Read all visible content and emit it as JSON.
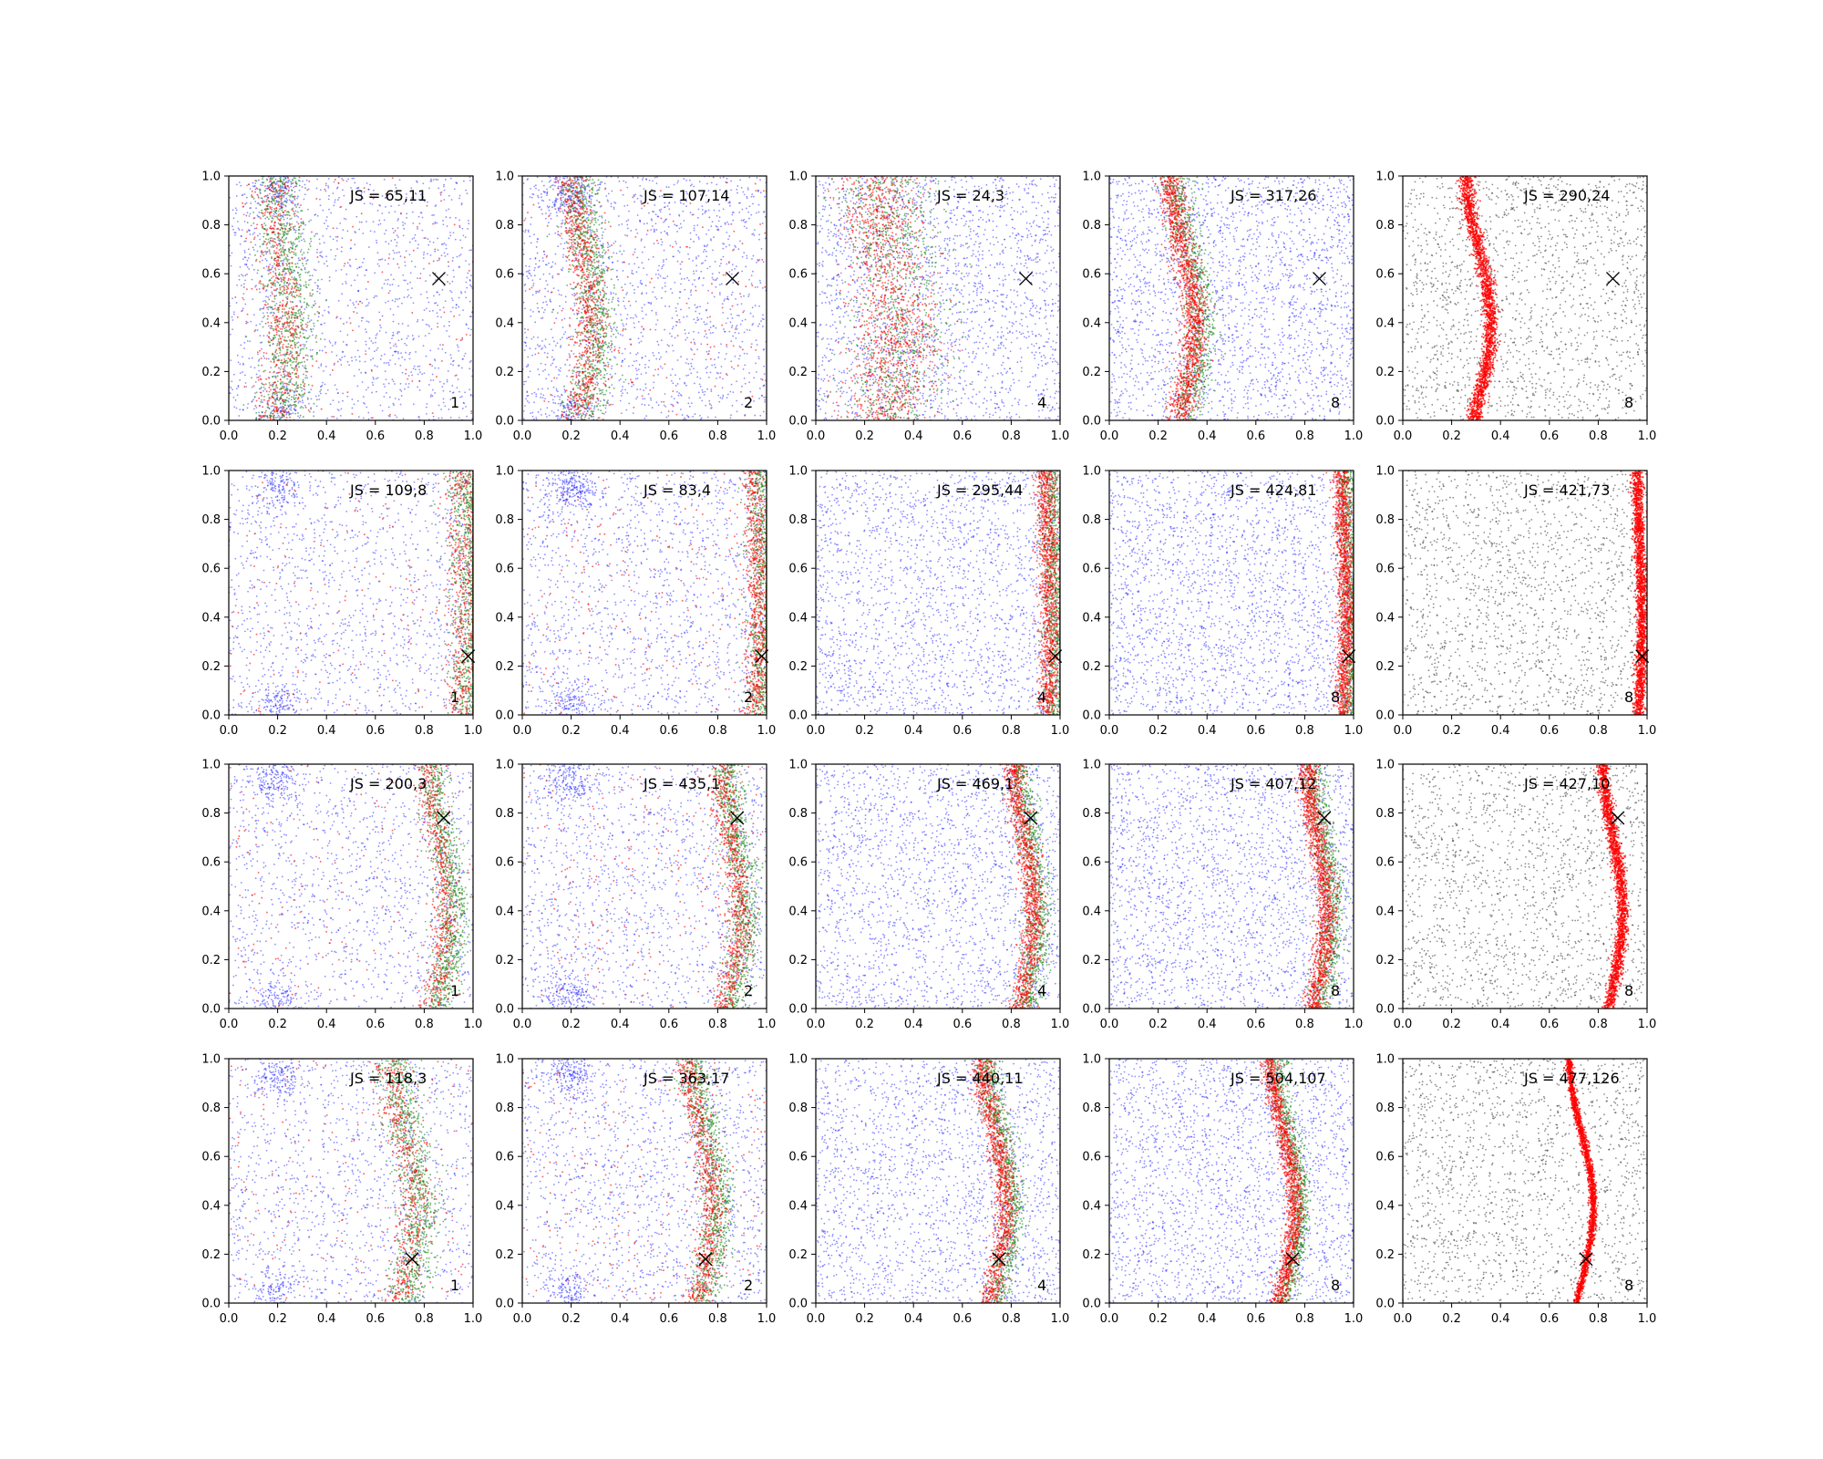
{
  "chart_data": {
    "type": "scatter",
    "grid": false,
    "rows": 4,
    "cols": 5,
    "xlim": [
      0,
      1
    ],
    "ylim": [
      0,
      1
    ],
    "xticks": [
      "0.0",
      "0.2",
      "0.4",
      "0.6",
      "0.8",
      "1.0"
    ],
    "yticks": [
      "0.0",
      "0.2",
      "0.4",
      "0.6",
      "0.8",
      "1.0"
    ],
    "colors": {
      "blue": "#1f1fff",
      "green": "#1a8a1a",
      "red": "#ff0000",
      "black": "#333333"
    },
    "panels": [
      {
        "label": "JS = 65,11",
        "corner": "1",
        "marker": [
          0.86,
          0.58
        ],
        "ridge": {
          "base": 0.21,
          "amp": 0.03,
          "width": 0.05
        }
      },
      {
        "label": "JS = 107,14",
        "corner": "2",
        "marker": [
          0.86,
          0.58
        ],
        "ridge": {
          "base": 0.25,
          "amp": 0.04,
          "width": 0.04
        }
      },
      {
        "label": "JS = 24,3",
        "corner": "4",
        "marker": [
          0.86,
          0.58
        ],
        "ridge": {
          "base": 0.3,
          "amp": 0.04,
          "width": 0.1
        }
      },
      {
        "label": "JS = 317,26",
        "corner": "8",
        "marker": [
          0.86,
          0.58
        ],
        "ridge": {
          "base": 0.31,
          "amp": 0.05,
          "width": 0.03
        }
      },
      {
        "label": "JS = 290,24",
        "corner": "8",
        "marker": [
          0.86,
          0.58
        ],
        "ridge": {
          "base": 0.31,
          "amp": 0.05,
          "width": 0.025
        }
      },
      {
        "label": "JS = 109,8",
        "corner": "1",
        "marker": [
          0.98,
          0.24
        ],
        "ridge": {
          "base": 0.97,
          "amp": 0.01,
          "width": 0.04
        }
      },
      {
        "label": "JS = 83,4",
        "corner": "2",
        "marker": [
          0.98,
          0.24
        ],
        "ridge": {
          "base": 0.97,
          "amp": 0.01,
          "width": 0.03
        }
      },
      {
        "label": "JS = 295,44",
        "corner": "4",
        "marker": [
          0.98,
          0.24
        ],
        "ridge": {
          "base": 0.96,
          "amp": 0.01,
          "width": 0.025
        }
      },
      {
        "label": "JS = 424,81",
        "corner": "8",
        "marker": [
          0.98,
          0.24
        ],
        "ridge": {
          "base": 0.97,
          "amp": 0.01,
          "width": 0.02
        }
      },
      {
        "label": "JS = 421,73",
        "corner": "8",
        "marker": [
          0.98,
          0.24
        ],
        "ridge": {
          "base": 0.97,
          "amp": 0.01,
          "width": 0.02
        }
      },
      {
        "label": "JS = 200,3",
        "corner": "1",
        "marker": [
          0.88,
          0.78
        ],
        "ridge": {
          "base": 0.86,
          "amp": 0.04,
          "width": 0.03
        }
      },
      {
        "label": "JS = 435,1",
        "corner": "2",
        "marker": [
          0.88,
          0.78
        ],
        "ridge": {
          "base": 0.86,
          "amp": 0.04,
          "width": 0.03
        }
      },
      {
        "label": "JS = 469,1",
        "corner": "4",
        "marker": [
          0.88,
          0.78
        ],
        "ridge": {
          "base": 0.86,
          "amp": 0.04,
          "width": 0.025
        }
      },
      {
        "label": "JS = 407,12",
        "corner": "8",
        "marker": [
          0.88,
          0.78
        ],
        "ridge": {
          "base": 0.86,
          "amp": 0.04,
          "width": 0.025
        }
      },
      {
        "label": "JS = 427,10",
        "corner": "8",
        "marker": [
          0.88,
          0.78
        ],
        "ridge": {
          "base": 0.86,
          "amp": 0.04,
          "width": 0.02
        }
      },
      {
        "label": "JS = 118,3",
        "corner": "1",
        "marker": [
          0.75,
          0.18
        ],
        "ridge": {
          "base": 0.72,
          "amp": 0.05,
          "width": 0.04
        }
      },
      {
        "label": "JS = 363,17",
        "corner": "2",
        "marker": [
          0.75,
          0.18
        ],
        "ridge": {
          "base": 0.74,
          "amp": 0.05,
          "width": 0.03
        }
      },
      {
        "label": "JS = 440,11",
        "corner": "4",
        "marker": [
          0.75,
          0.18
        ],
        "ridge": {
          "base": 0.74,
          "amp": 0.05,
          "width": 0.025
        }
      },
      {
        "label": "JS = 504,107",
        "corner": "8",
        "marker": [
          0.75,
          0.18
        ],
        "ridge": {
          "base": 0.72,
          "amp": 0.05,
          "width": 0.02
        }
      },
      {
        "label": "JS = 477,126",
        "corner": "8",
        "marker": [
          0.75,
          0.18
        ],
        "ridge": {
          "base": 0.73,
          "amp": 0.05,
          "width": 0.012
        }
      }
    ]
  }
}
